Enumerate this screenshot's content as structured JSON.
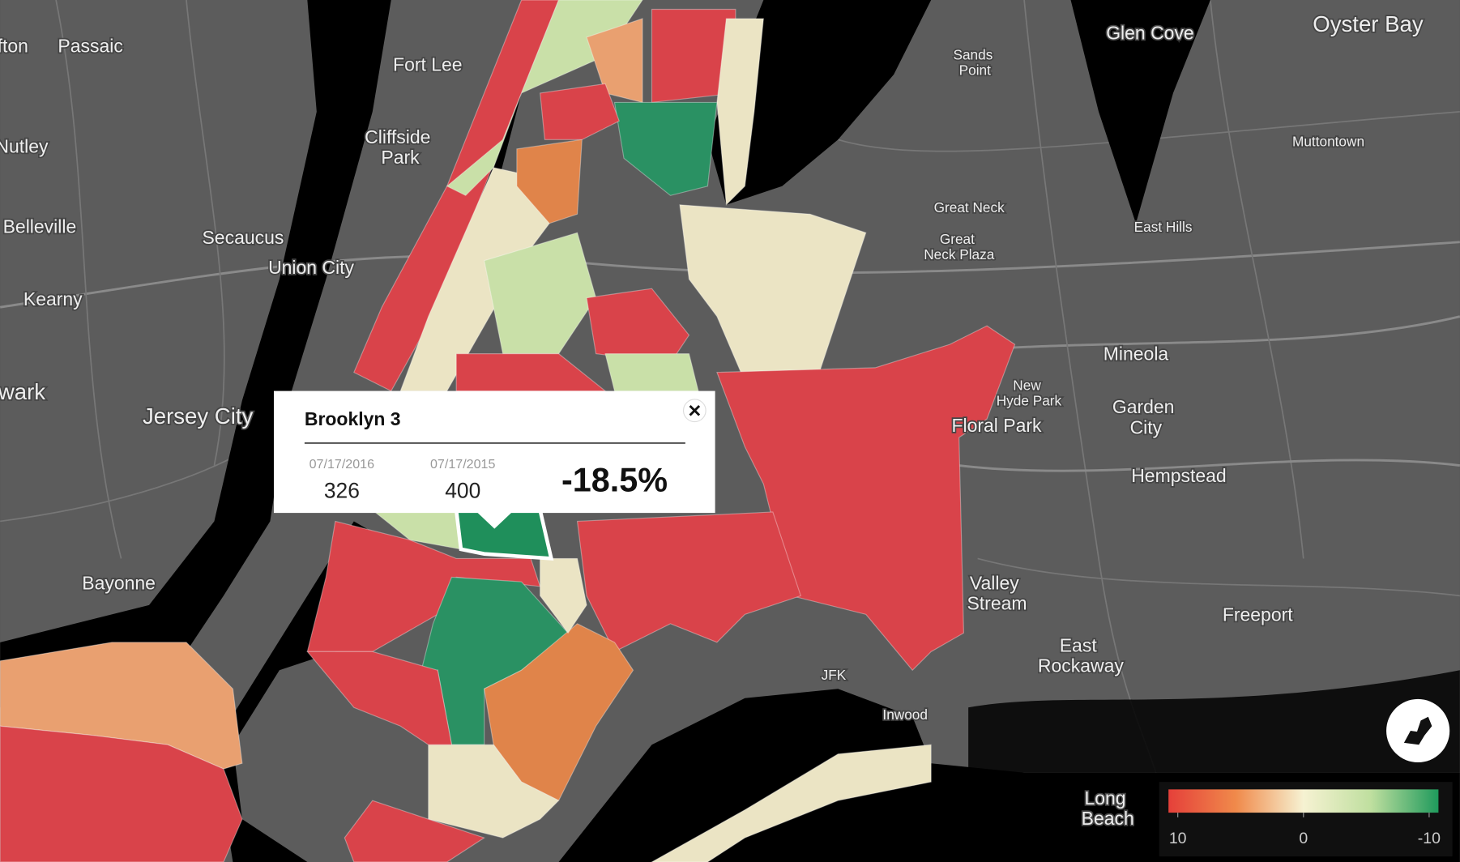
{
  "map": {
    "labels": [
      "lifton",
      "Passaic",
      "Fort Lee",
      "Glen Cove",
      "Oyster Bay",
      "Sands Point",
      "Nutley",
      "Cliffside Park",
      "Muttontown",
      "Belleville",
      "Secaucus",
      "Great Neck",
      "Great Neck Plaza",
      "East Hills",
      "Union City",
      "Kearny",
      "Mineola",
      "wark",
      "Jersey City",
      "New Hyde Park",
      "Garden City",
      "Floral Park",
      "Hempstead",
      "Bayonne",
      "Valley Stream",
      "Freeport",
      "East Rockaway",
      "JFK",
      "Inwood",
      "Long Beach"
    ]
  },
  "popup": {
    "title": "Brooklyn 3",
    "date_current": "07/17/2016",
    "value_current": 326,
    "date_previous": "07/17/2015",
    "value_previous": 400,
    "change": "-18.5%"
  },
  "legend": {
    "ticks": [
      10,
      0,
      -10
    ]
  }
}
